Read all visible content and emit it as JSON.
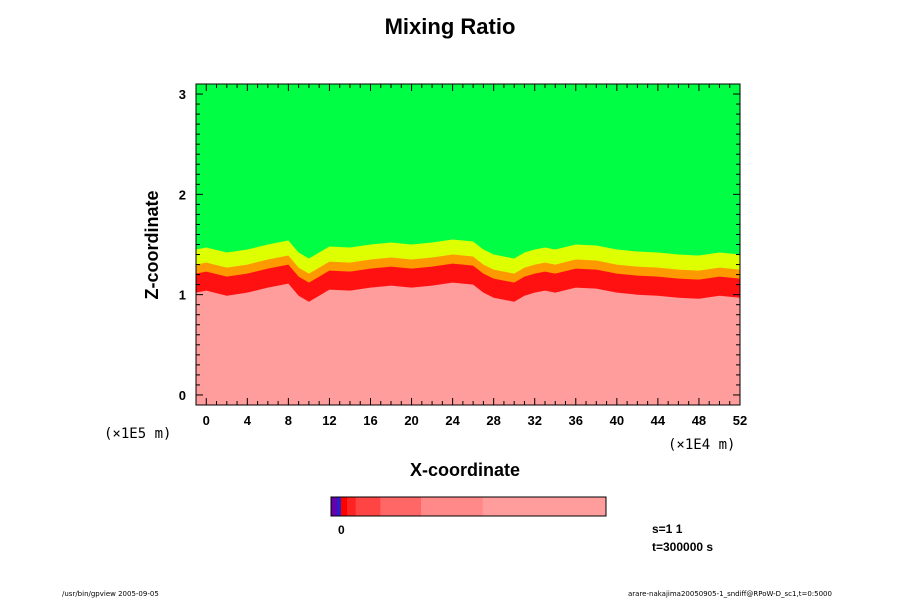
{
  "chart_data": {
    "type": "heatmap",
    "title": "Mixing Ratio",
    "xlabel": "X-coordinate",
    "ylabel": "Z-coordinate",
    "x_scale_label": "(×1E4 m)",
    "y_scale_label": "(×1E5 m)",
    "xlim": [
      -1.0,
      52.0
    ],
    "ylim": [
      -0.1,
      3.1
    ],
    "x_ticks": [
      0,
      4,
      8,
      12,
      16,
      20,
      24,
      28,
      32,
      36,
      40,
      44,
      48,
      52
    ],
    "y_ticks": [
      0,
      1,
      2,
      3
    ],
    "interface_x": [
      -1,
      0,
      2,
      4,
      6,
      8,
      9,
      10,
      11,
      12,
      14,
      16,
      18,
      20,
      22,
      24,
      25,
      26,
      27,
      28,
      29,
      30,
      31,
      32,
      33,
      34,
      36,
      38,
      40,
      42,
      44,
      46,
      48,
      50,
      52
    ],
    "interface_z": [
      1.05,
      1.07,
      1.02,
      1.05,
      1.1,
      1.14,
      1.02,
      0.96,
      1.02,
      1.08,
      1.07,
      1.1,
      1.12,
      1.1,
      1.12,
      1.15,
      1.14,
      1.13,
      1.05,
      1.0,
      0.98,
      0.96,
      1.02,
      1.05,
      1.07,
      1.05,
      1.1,
      1.09,
      1.05,
      1.03,
      1.02,
      1.0,
      0.99,
      1.02,
      1.0
    ],
    "layers": [
      {
        "name": "upper",
        "color": "#00ff44"
      },
      {
        "name": "transition-yellow",
        "color": "#ddff00"
      },
      {
        "name": "transition-orange",
        "color": "#ff9900"
      },
      {
        "name": "mixing-red",
        "color": "#ff1111"
      },
      {
        "name": "lower",
        "color": "#ff9c9c"
      }
    ],
    "colorbar": {
      "label": "0",
      "segments": [
        {
          "color": "#6600aa",
          "width": 1
        },
        {
          "color": "#2222cc",
          "width": 0.6
        },
        {
          "color": "#ff0000",
          "width": 1
        },
        {
          "color": "#ff2222",
          "width": 1.4
        },
        {
          "color": "#ff4444",
          "width": 4
        },
        {
          "color": "#ff6666",
          "width": 6.6
        },
        {
          "color": "#ff8888",
          "width": 10
        },
        {
          "color": "#ff9c9c",
          "width": 20
        }
      ]
    }
  },
  "status": {
    "s": "s=1 1",
    "t": "t=300000 s"
  },
  "footer": {
    "left": "/usr/bin/gpview 2005-09-05",
    "right": "arare-nakajima20050905-1_sndiff@RPoW-D_sc1,t=0:5000"
  }
}
